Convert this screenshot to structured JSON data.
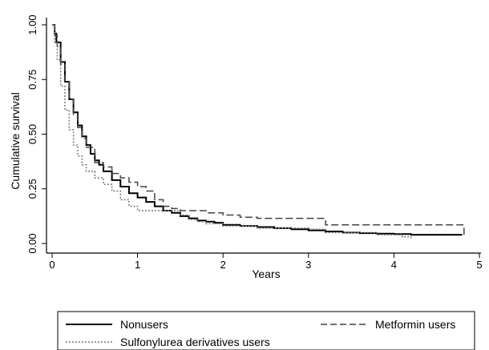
{
  "chart_data": {
    "type": "line",
    "title": "",
    "xlabel": "Years",
    "ylabel": "Cumulative survival",
    "xlim": [
      0,
      5
    ],
    "ylim": [
      0,
      1
    ],
    "xticks": [
      0,
      1,
      2,
      3,
      4,
      5
    ],
    "yticks": [
      0,
      0.25,
      0.5,
      0.75,
      1
    ],
    "xtick_labels": [
      "0",
      "1",
      "2",
      "3",
      "4",
      "5"
    ],
    "ytick_labels": [
      "0.00",
      "0.25",
      "0.50",
      "0.75",
      "1.00"
    ],
    "grid": false,
    "legend_position": "bottom",
    "series": [
      {
        "name": "Nonusers",
        "style": "solid",
        "color": "#000000",
        "x": [
          0,
          0.03,
          0.05,
          0.1,
          0.15,
          0.2,
          0.25,
          0.3,
          0.35,
          0.4,
          0.45,
          0.5,
          0.55,
          0.6,
          0.7,
          0.8,
          0.9,
          1.0,
          1.1,
          1.2,
          1.3,
          1.4,
          1.5,
          1.6,
          1.7,
          1.8,
          1.9,
          2.0,
          2.2,
          2.4,
          2.6,
          2.8,
          3.0,
          3.2,
          3.4,
          3.6,
          3.8,
          4.0,
          4.2,
          4.4,
          4.8
        ],
        "y": [
          1.0,
          0.96,
          0.92,
          0.83,
          0.74,
          0.66,
          0.6,
          0.54,
          0.49,
          0.45,
          0.41,
          0.38,
          0.36,
          0.33,
          0.29,
          0.26,
          0.23,
          0.21,
          0.19,
          0.17,
          0.15,
          0.14,
          0.125,
          0.115,
          0.105,
          0.1,
          0.095,
          0.085,
          0.08,
          0.075,
          0.07,
          0.065,
          0.06,
          0.055,
          0.05,
          0.047,
          0.045,
          0.043,
          0.04,
          0.04,
          0.04
        ]
      },
      {
        "name": "Metformin users",
        "style": "dashed",
        "color": "#444444",
        "x": [
          0,
          0.03,
          0.06,
          0.1,
          0.15,
          0.2,
          0.25,
          0.3,
          0.35,
          0.4,
          0.5,
          0.6,
          0.7,
          0.8,
          0.9,
          1.0,
          1.1,
          1.2,
          1.3,
          1.4,
          1.5,
          1.6,
          1.7,
          1.8,
          1.9,
          2.0,
          2.2,
          2.4,
          2.6,
          2.8,
          3.0,
          3.2,
          3.4,
          3.6,
          3.8,
          4.0,
          4.2,
          4.4,
          4.6,
          4.8,
          4.82
        ],
        "y": [
          1.0,
          0.95,
          0.9,
          0.82,
          0.74,
          0.66,
          0.59,
          0.53,
          0.48,
          0.44,
          0.37,
          0.35,
          0.32,
          0.3,
          0.28,
          0.26,
          0.24,
          0.2,
          0.17,
          0.16,
          0.15,
          0.15,
          0.15,
          0.14,
          0.14,
          0.13,
          0.12,
          0.115,
          0.115,
          0.115,
          0.115,
          0.085,
          0.085,
          0.085,
          0.085,
          0.085,
          0.085,
          0.085,
          0.085,
          0.085,
          0.04
        ]
      },
      {
        "name": "Sulfonylurea derivatives users",
        "style": "dotted",
        "color": "#777777",
        "x": [
          0,
          0.03,
          0.06,
          0.1,
          0.15,
          0.2,
          0.25,
          0.3,
          0.35,
          0.4,
          0.5,
          0.6,
          0.7,
          0.8,
          0.9,
          1.0,
          1.1,
          1.2,
          1.3,
          1.4,
          1.5,
          1.6,
          1.7,
          1.8,
          1.9,
          2.0,
          2.2,
          2.4,
          2.6,
          2.8,
          3.0,
          3.2,
          3.4,
          3.6,
          3.8,
          4.0,
          4.1,
          4.2
        ],
        "y": [
          1.0,
          0.92,
          0.84,
          0.72,
          0.61,
          0.52,
          0.45,
          0.4,
          0.36,
          0.33,
          0.3,
          0.27,
          0.24,
          0.2,
          0.17,
          0.15,
          0.15,
          0.15,
          0.15,
          0.15,
          0.13,
          0.11,
          0.1,
          0.09,
          0.09,
          0.08,
          0.08,
          0.07,
          0.07,
          0.07,
          0.065,
          0.05,
          0.05,
          0.05,
          0.04,
          0.04,
          0.03,
          0.02
        ]
      }
    ]
  },
  "legend": {
    "items": [
      {
        "label": "Nonusers",
        "style": "solid",
        "color": "#000000"
      },
      {
        "label": "Metformin users",
        "style": "dashed",
        "color": "#444444"
      },
      {
        "label": "Sulfonylurea derivatives users",
        "style": "dotted",
        "color": "#777777"
      }
    ]
  }
}
